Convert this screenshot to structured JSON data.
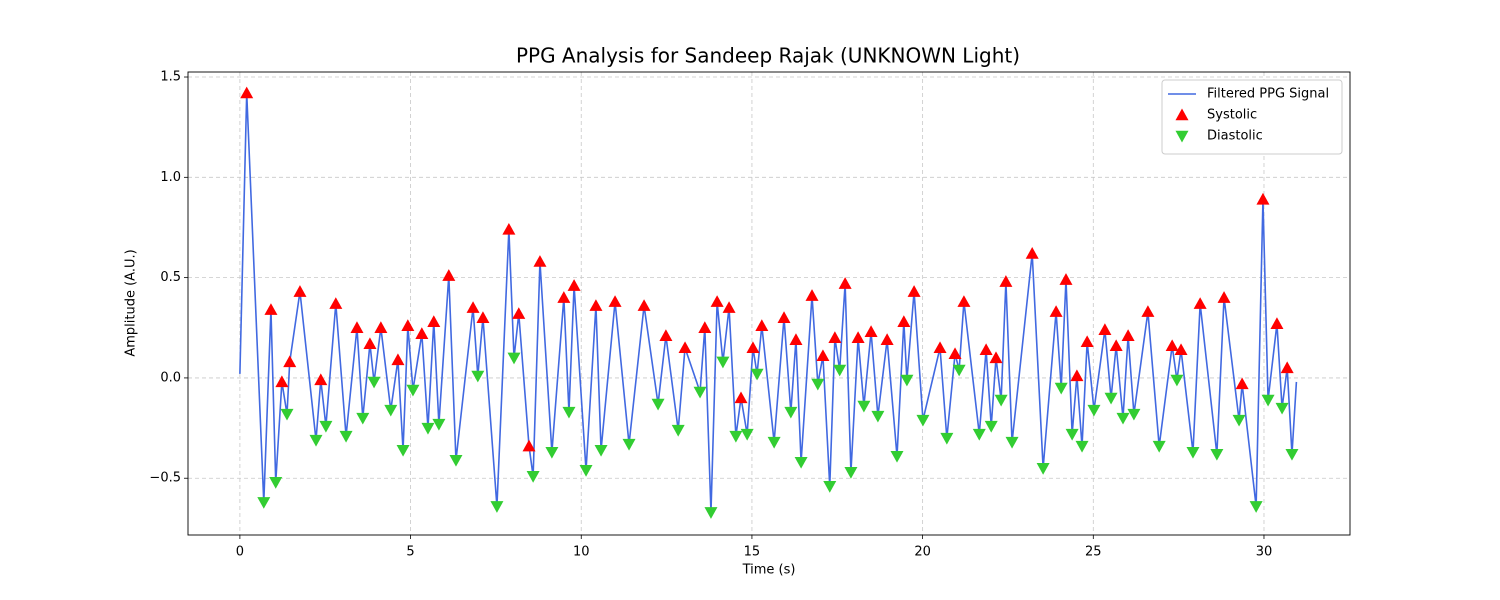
{
  "chart_data": {
    "type": "line",
    "title": "PPG Analysis for Sandeep Rajak (UNKNOWN Light)",
    "x_label": "Time (s)",
    "y_label": "Amplitude (A.U.)",
    "xlim": [
      -1.52,
      32.52
    ],
    "ylim": [
      -0.783,
      1.525
    ],
    "xticks": [
      0,
      5,
      10,
      15,
      20,
      25,
      30
    ],
    "yticks": [
      {
        "value": -0.5,
        "label": "−0.5"
      },
      {
        "value": 0,
        "label": "0.0"
      },
      0.5,
      {
        "value": 1,
        "label": "1.0"
      },
      1.5
    ],
    "grid": true,
    "legend": "upper right",
    "series": [
      {
        "name": "Filtered PPG Signal",
        "type": "line",
        "color": "#4169e1",
        "x": [
          0,
          0.2,
          0.7,
          0.91,
          1.05,
          1.23,
          1.38,
          1.46,
          1.76,
          2.23,
          2.37,
          2.52,
          2.81,
          3.11,
          3.43,
          3.6,
          3.81,
          3.93,
          4.13,
          4.42,
          4.63,
          4.78,
          4.92,
          5.07,
          5.33,
          5.51,
          5.68,
          5.83,
          6.12,
          6.33,
          6.83,
          6.97,
          7.12,
          7.53,
          7.88,
          8.03,
          8.17,
          8.47,
          8.59,
          8.79,
          9.14,
          9.49,
          9.64,
          9.79,
          10.14,
          10.43,
          10.58,
          10.99,
          11.4,
          11.84,
          12.25,
          12.48,
          12.84,
          13.04,
          13.48,
          13.62,
          13.8,
          13.98,
          14.15,
          14.33,
          14.53,
          14.68,
          14.86,
          15.03,
          15.15,
          15.29,
          15.65,
          15.94,
          16.14,
          16.29,
          16.44,
          16.76,
          16.93,
          17.08,
          17.28,
          17.43,
          17.57,
          17.73,
          17.9,
          18.11,
          18.28,
          18.49,
          18.69,
          18.96,
          19.25,
          19.45,
          19.54,
          19.75,
          20.01,
          20.51,
          20.71,
          20.95,
          21.07,
          21.21,
          21.66,
          21.86,
          22.01,
          22.15,
          22.3,
          22.44,
          22.62,
          23.21,
          23.53,
          23.91,
          24.06,
          24.2,
          24.38,
          24.52,
          24.67,
          24.82,
          25.02,
          25.34,
          25.52,
          25.67,
          25.87,
          26.02,
          26.19,
          26.6,
          26.93,
          27.31,
          27.45,
          27.57,
          27.92,
          28.13,
          28.62,
          28.83,
          29.27,
          29.36,
          29.77,
          29.97,
          30.12,
          30.38,
          30.53,
          30.68,
          30.82,
          30.95
        ],
        "values": [
          0.02,
          1.42,
          -0.62,
          0.34,
          -0.52,
          -0.02,
          -0.18,
          0.08,
          0.43,
          -0.31,
          -0.01,
          -0.24,
          0.37,
          -0.29,
          0.25,
          -0.2,
          0.17,
          -0.02,
          0.25,
          -0.16,
          0.09,
          -0.36,
          0.26,
          -0.06,
          0.22,
          -0.25,
          0.28,
          -0.23,
          0.51,
          -0.41,
          0.35,
          0.01,
          0.3,
          -0.64,
          0.74,
          0.1,
          0.32,
          -0.34,
          -0.49,
          0.58,
          -0.37,
          0.4,
          -0.17,
          0.46,
          -0.46,
          0.36,
          -0.36,
          0.38,
          -0.33,
          0.36,
          -0.13,
          0.21,
          -0.26,
          0.15,
          -0.07,
          0.25,
          -0.67,
          0.38,
          0.08,
          0.35,
          -0.29,
          -0.1,
          -0.28,
          0.15,
          0.02,
          0.26,
          -0.32,
          0.3,
          -0.17,
          0.19,
          -0.42,
          0.41,
          -0.03,
          0.11,
          -0.54,
          0.2,
          0.04,
          0.47,
          -0.47,
          0.2,
          -0.14,
          0.23,
          -0.19,
          0.19,
          -0.39,
          0.28,
          -0.01,
          0.43,
          -0.21,
          0.15,
          -0.3,
          0.12,
          0.04,
          0.38,
          -0.28,
          0.14,
          -0.24,
          0.1,
          -0.11,
          0.48,
          -0.32,
          0.62,
          -0.45,
          0.33,
          -0.05,
          0.49,
          -0.28,
          0.01,
          -0.34,
          0.18,
          -0.16,
          0.24,
          -0.1,
          0.16,
          -0.2,
          0.21,
          -0.18,
          0.33,
          -0.34,
          0.16,
          -0.01,
          0.14,
          -0.37,
          0.37,
          -0.38,
          0.4,
          -0.21,
          -0.03,
          -0.64,
          0.89,
          -0.11,
          0.27,
          -0.15,
          0.05,
          -0.38,
          -0.02
        ]
      },
      {
        "name": "Systolic",
        "type": "scatter",
        "marker": "triangle-up",
        "color": "#ff0000",
        "x": [
          0.2,
          0.91,
          1.23,
          1.46,
          1.76,
          2.37,
          2.81,
          3.43,
          3.81,
          4.13,
          4.63,
          4.92,
          5.33,
          5.68,
          6.12,
          6.83,
          7.12,
          7.88,
          8.17,
          8.47,
          8.79,
          9.49,
          9.79,
          10.43,
          10.99,
          11.84,
          12.48,
          13.04,
          13.62,
          13.98,
          14.33,
          14.68,
          15.03,
          15.29,
          15.94,
          16.29,
          16.76,
          17.08,
          17.43,
          17.73,
          18.11,
          18.49,
          18.96,
          19.45,
          19.75,
          20.51,
          20.95,
          21.21,
          21.86,
          22.15,
          22.44,
          23.21,
          23.91,
          24.2,
          24.52,
          24.82,
          25.34,
          25.67,
          26.02,
          26.6,
          27.31,
          27.57,
          28.13,
          28.83,
          29.36,
          29.97,
          30.38,
          30.68
        ],
        "values": [
          1.42,
          0.34,
          -0.02,
          0.08,
          0.43,
          -0.01,
          0.37,
          0.25,
          0.17,
          0.25,
          0.09,
          0.26,
          0.22,
          0.28,
          0.51,
          0.35,
          0.3,
          0.74,
          0.32,
          -0.34,
          0.58,
          0.4,
          0.46,
          0.36,
          0.38,
          0.36,
          0.21,
          0.15,
          0.25,
          0.38,
          0.35,
          -0.1,
          0.15,
          0.26,
          0.3,
          0.19,
          0.41,
          0.11,
          0.2,
          0.47,
          0.2,
          0.23,
          0.19,
          0.28,
          0.43,
          0.15,
          0.12,
          0.38,
          0.14,
          0.1,
          0.48,
          0.62,
          0.33,
          0.49,
          0.01,
          0.18,
          0.24,
          0.16,
          0.21,
          0.33,
          0.16,
          0.14,
          0.37,
          0.4,
          -0.03,
          0.89,
          0.27,
          0.05
        ]
      },
      {
        "name": "Diastolic",
        "type": "scatter",
        "marker": "triangle-down",
        "color": "#32cd32",
        "x": [
          0.7,
          1.05,
          1.38,
          2.23,
          2.52,
          3.11,
          3.6,
          3.93,
          4.42,
          4.78,
          5.07,
          5.51,
          5.83,
          6.33,
          6.97,
          7.53,
          8.03,
          8.59,
          9.14,
          9.64,
          10.14,
          10.58,
          11.4,
          12.25,
          12.84,
          13.48,
          13.8,
          14.15,
          14.53,
          14.86,
          15.15,
          15.65,
          16.14,
          16.44,
          16.93,
          17.28,
          17.57,
          17.9,
          18.28,
          18.69,
          19.25,
          19.54,
          20.01,
          20.71,
          21.07,
          21.66,
          22.01,
          22.3,
          22.62,
          23.53,
          24.06,
          24.38,
          24.67,
          25.02,
          25.52,
          25.87,
          26.19,
          26.93,
          27.45,
          27.92,
          28.62,
          29.27,
          29.77,
          30.12,
          30.53,
          30.82
        ],
        "values": [
          -0.62,
          -0.52,
          -0.18,
          -0.31,
          -0.24,
          -0.29,
          -0.2,
          -0.02,
          -0.16,
          -0.36,
          -0.06,
          -0.25,
          -0.23,
          -0.41,
          0.01,
          -0.64,
          0.1,
          -0.49,
          -0.37,
          -0.17,
          -0.46,
          -0.36,
          -0.33,
          -0.13,
          -0.26,
          -0.07,
          -0.67,
          0.08,
          -0.29,
          -0.28,
          0.02,
          -0.32,
          -0.17,
          -0.42,
          -0.03,
          -0.54,
          0.04,
          -0.47,
          -0.14,
          -0.19,
          -0.39,
          -0.01,
          -0.21,
          -0.3,
          0.04,
          -0.28,
          -0.24,
          -0.11,
          -0.32,
          -0.45,
          -0.05,
          -0.28,
          -0.34,
          -0.16,
          -0.1,
          -0.2,
          -0.18,
          -0.34,
          -0.01,
          -0.37,
          -0.38,
          -0.21,
          -0.64,
          -0.11,
          -0.15,
          -0.38
        ]
      }
    ]
  }
}
